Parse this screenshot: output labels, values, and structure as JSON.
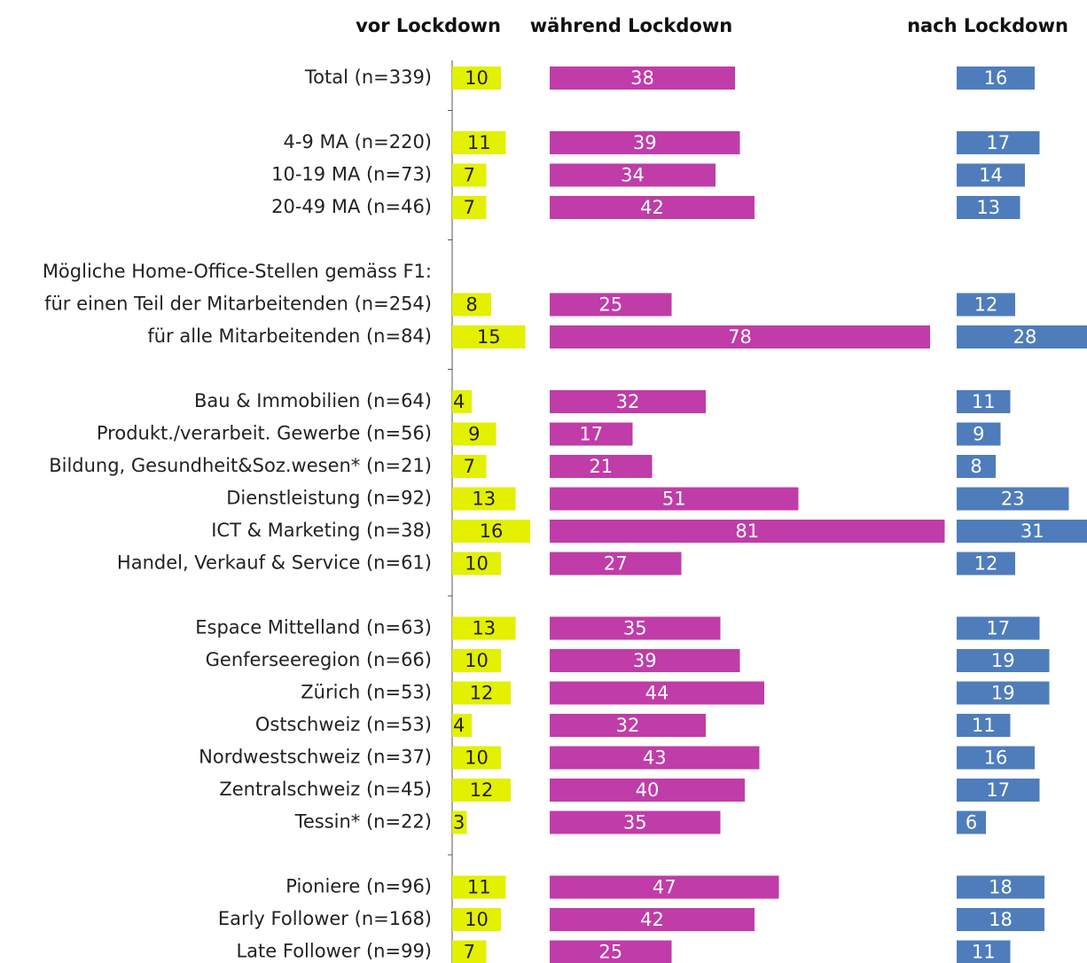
{
  "chart_data": {
    "type": "bar",
    "categories": [
      "Total (n=339)",
      null,
      "4-9 MA (n=220)",
      "10-19 MA (n=73)",
      "20-49 MA (n=46)",
      null,
      "Mögliche Home-Office-Stellen gemäss F1:",
      "für einen Teil der Mitarbeitenden (n=254)",
      "für alle Mitarbeitenden (n=84)",
      null,
      "Bau & Immobilien (n=64)",
      "Produkt./verarbeit. Gewerbe (n=56)",
      "Bildung, Gesundheit&Soz.wesen* (n=21)",
      "Dienstleistung (n=92)",
      "ICT & Marketing (n=38)",
      "Handel, Verkauf & Service (n=61)",
      null,
      "Espace Mittelland (n=63)",
      "Genferseeregion (n=66)",
      "Zürich (n=53)",
      "Ostschweiz (n=53)",
      "Nordwestschweiz (n=37)",
      "Zentralschweiz (n=45)",
      "Tessin* (n=22)",
      null,
      "Pioniere (n=96)",
      "Early Follower (n=168)",
      "Late Follower (n=99)"
    ],
    "series": [
      {
        "name": "vor Lockdown",
        "color": "#e3f000",
        "values": [
          10,
          null,
          11,
          7,
          7,
          null,
          null,
          8,
          15,
          null,
          4,
          9,
          7,
          13,
          16,
          10,
          null,
          13,
          10,
          12,
          4,
          10,
          12,
          3,
          null,
          11,
          10,
          7
        ]
      },
      {
        "name": "während Lockdown",
        "color": "#c03ca8",
        "values": [
          38,
          null,
          39,
          34,
          42,
          null,
          null,
          25,
          78,
          null,
          32,
          17,
          21,
          51,
          81,
          27,
          null,
          35,
          39,
          44,
          32,
          43,
          40,
          35,
          null,
          47,
          42,
          25
        ]
      },
      {
        "name": "nach Lockdown",
        "color": "#4f7dbb",
        "values": [
          16,
          null,
          17,
          14,
          13,
          null,
          null,
          12,
          28,
          null,
          11,
          9,
          8,
          23,
          31,
          12,
          null,
          17,
          19,
          19,
          11,
          16,
          17,
          6,
          null,
          18,
          18,
          11
        ]
      }
    ],
    "xlim": [
      0,
      100
    ]
  }
}
